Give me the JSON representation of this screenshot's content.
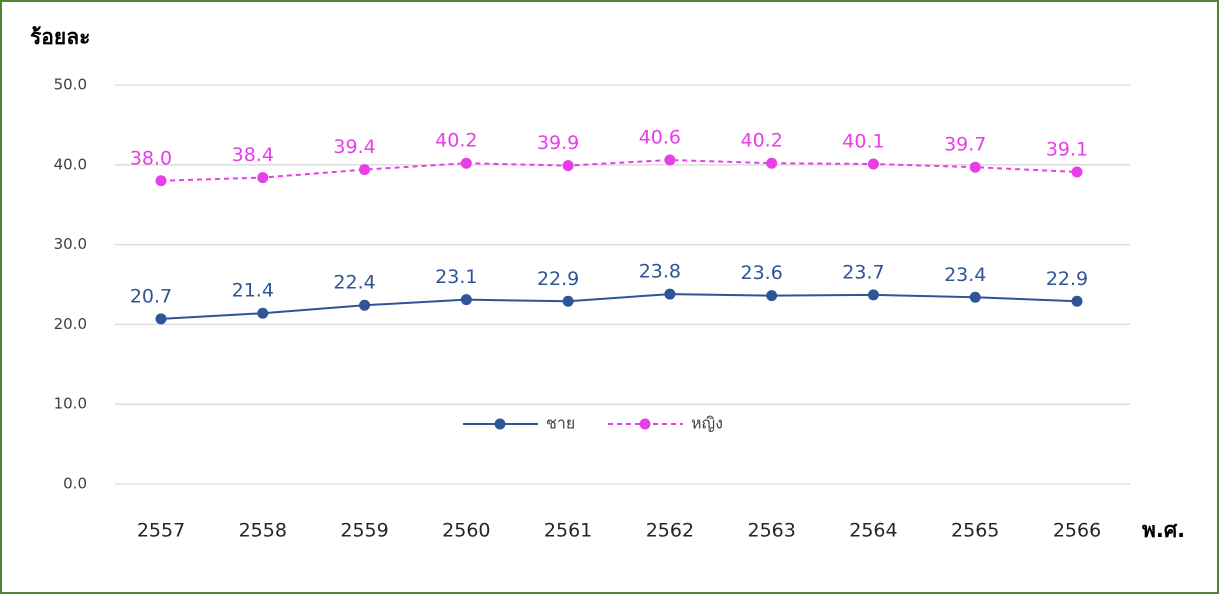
{
  "chart_data": {
    "type": "line",
    "y_axis_label": "ร้อยละ",
    "x_axis_label": "พ.ศ.",
    "categories": [
      "2557",
      "2558",
      "2559",
      "2560",
      "2561",
      "2562",
      "2563",
      "2564",
      "2565",
      "2566"
    ],
    "series": [
      {
        "name": "ชาย",
        "color": "#2f5597",
        "dashed": false,
        "values": [
          20.7,
          21.4,
          22.4,
          23.1,
          22.9,
          23.8,
          23.6,
          23.7,
          23.4,
          22.9
        ],
        "value_labels": [
          "20.7",
          "21.4",
          "22.4",
          "23.1",
          "22.9",
          "23.8",
          "23.6",
          "23.7",
          "23.4",
          "22.9"
        ]
      },
      {
        "name": "หญิง",
        "color": "#e83ee8",
        "dashed": true,
        "values": [
          38.0,
          38.4,
          39.4,
          40.2,
          39.9,
          40.6,
          40.2,
          40.1,
          39.7,
          39.1
        ],
        "value_labels": [
          "38.0",
          "38.4",
          "39.4",
          "40.2",
          "39.9",
          "40.6",
          "40.2",
          "40.1",
          "39.7",
          "39.1"
        ]
      }
    ],
    "ylim": [
      0,
      50
    ],
    "yticks": [
      {
        "value": 0,
        "label": "0.0"
      },
      {
        "value": 10,
        "label": "10.0"
      },
      {
        "value": 20,
        "label": "20.0"
      },
      {
        "value": 30,
        "label": "30.0"
      },
      {
        "value": 40,
        "label": "40.0"
      },
      {
        "value": 50,
        "label": "50.0"
      }
    ],
    "grid": true,
    "legend": "center"
  }
}
